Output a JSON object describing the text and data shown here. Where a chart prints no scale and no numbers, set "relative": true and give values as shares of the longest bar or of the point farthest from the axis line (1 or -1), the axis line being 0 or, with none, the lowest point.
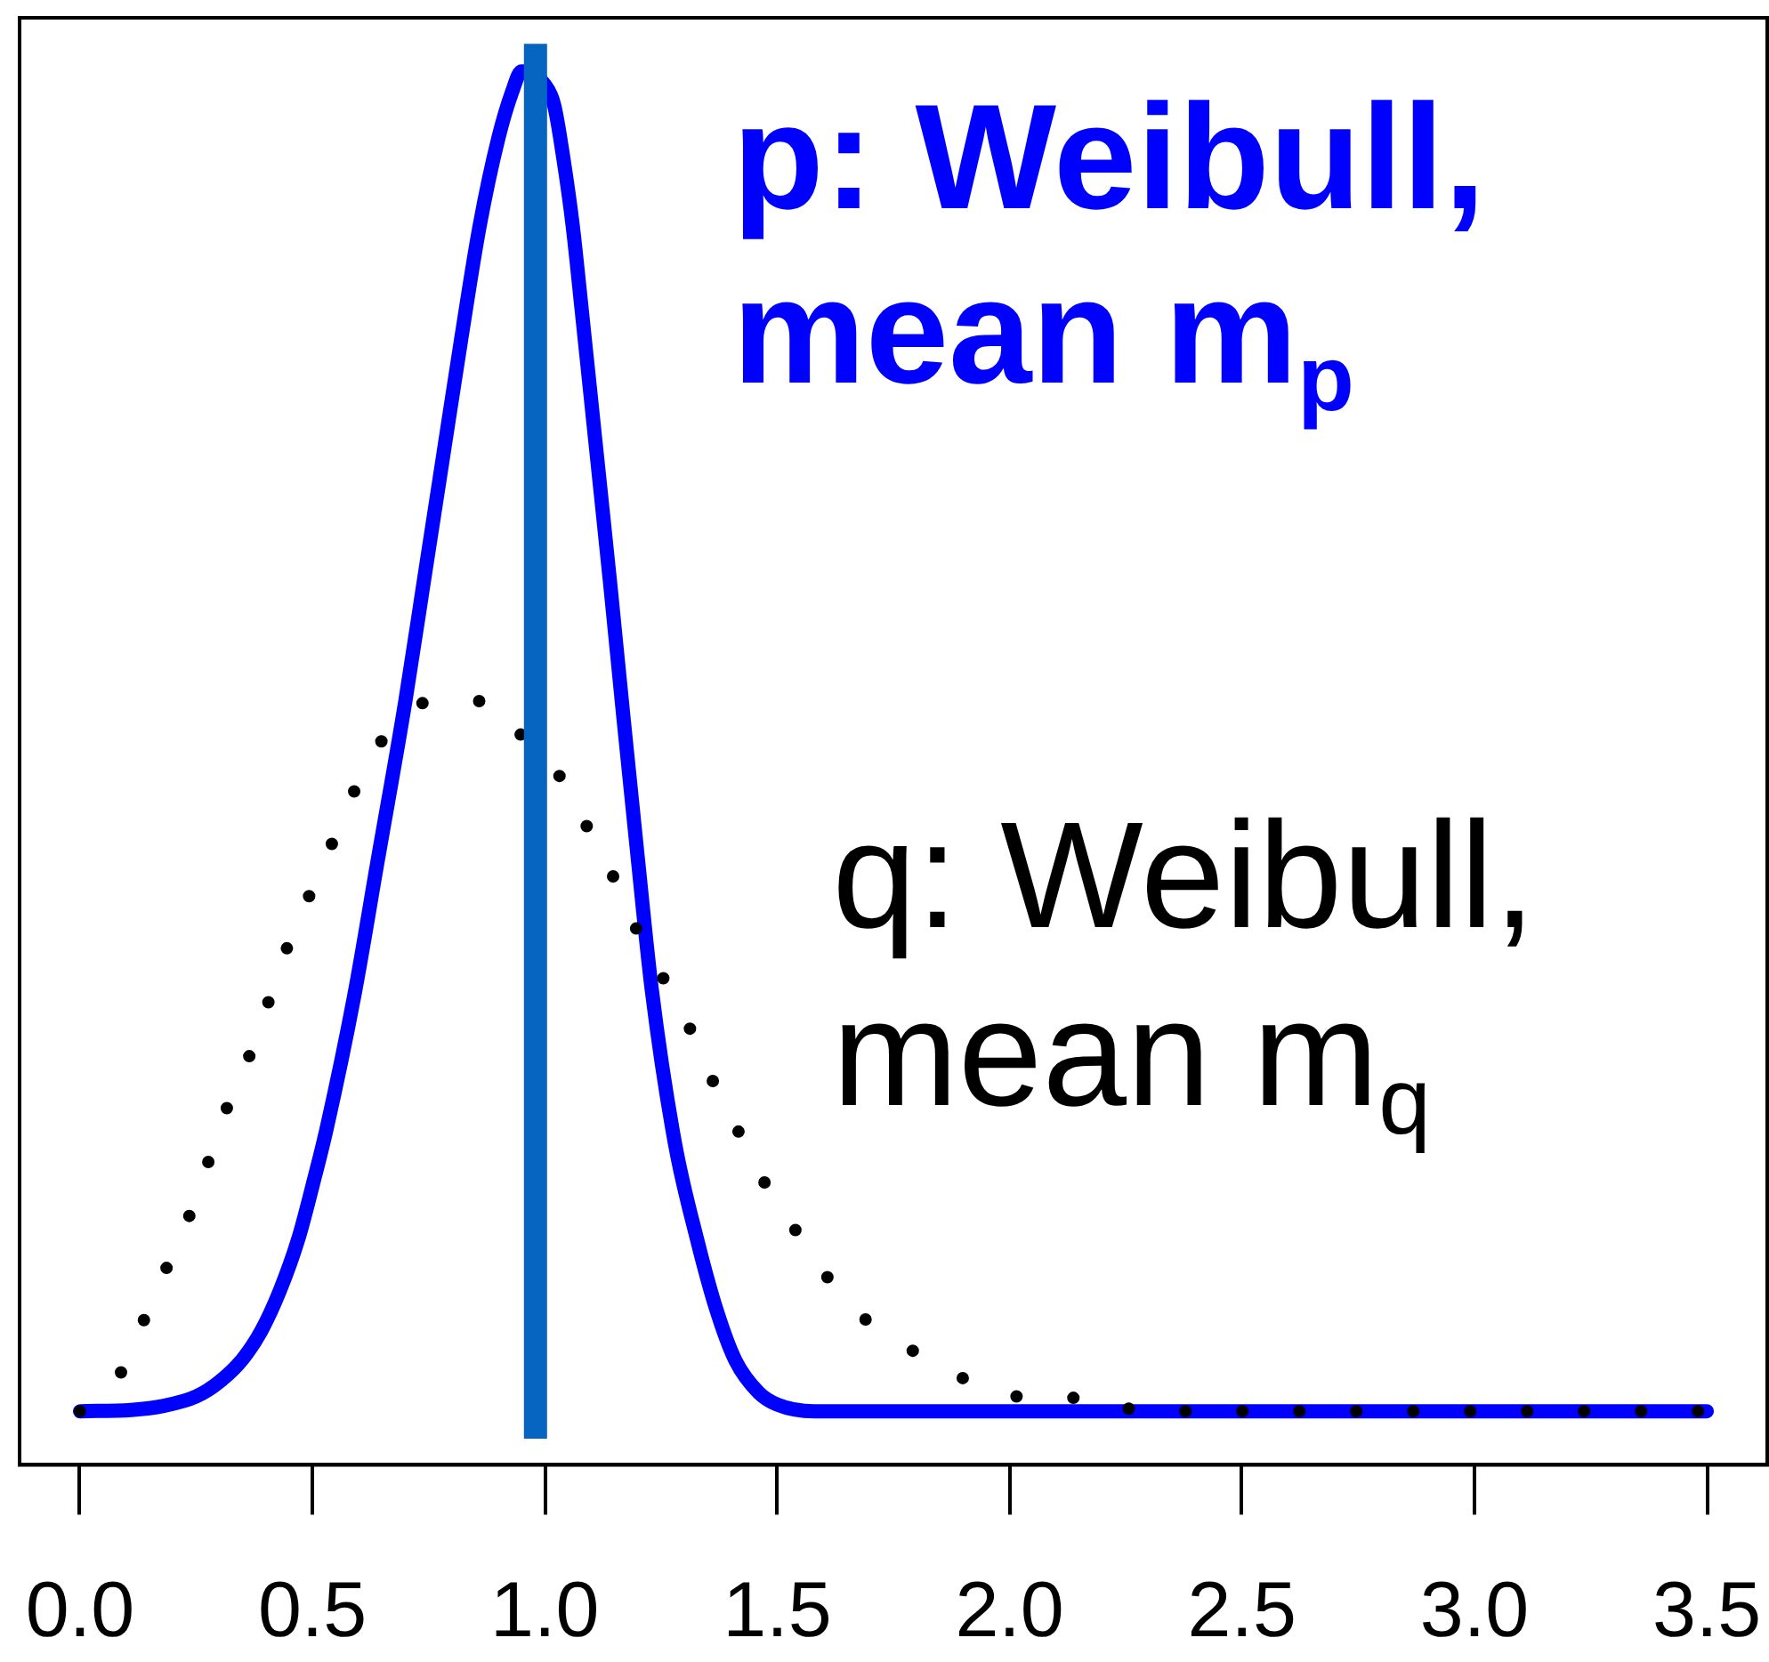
{
  "chart_data": {
    "type": "line",
    "relative": true,
    "xlim": [
      -0.13,
      3.63
    ],
    "xticks": [
      {
        "value": 0,
        "label": "0.0"
      },
      0.5,
      {
        "value": 1,
        "label": "1.0"
      },
      1.5,
      {
        "value": 2,
        "label": "2.0"
      },
      2.5,
      {
        "value": 3,
        "label": "3.0"
      },
      3.5
    ],
    "series": [
      {
        "name": "p: Weibull, mean m$_{p}$",
        "color": "#0000ff",
        "line_style": "solid",
        "x": [
          0,
          0.11,
          0.18,
          0.25,
          0.3,
          0.35,
          0.39,
          0.43,
          0.47,
          0.5,
          0.53,
          0.59,
          0.64,
          0.7,
          0.74,
          0.78,
          0.82,
          0.86,
          0.9,
          0.93,
          0.95,
          1,
          1.02,
          1.04,
          1.06,
          1.08,
          1.11,
          1.14,
          1.17,
          1.2,
          1.23,
          1.28,
          1.33,
          1.37,
          1.41,
          1.46,
          1.5,
          1.58,
          2,
          2.5,
          3,
          3.5
        ],
        "values": [
          0,
          0.001,
          0.004,
          0.011,
          0.022,
          0.039,
          0.06,
          0.09,
          0.129,
          0.168,
          0.21,
          0.31,
          0.41,
          0.53,
          0.62,
          0.71,
          0.8,
          0.885,
          0.95,
          0.985,
          1,
          0.99,
          0.975,
          0.935,
          0.885,
          0.82,
          0.72,
          0.62,
          0.515,
          0.413,
          0.315,
          0.2,
          0.125,
          0.075,
          0.038,
          0.014,
          0.005,
          0,
          0,
          0,
          0,
          0
        ]
      },
      {
        "name": "q: Weibull, mean m$_{q}$",
        "color": "#000000",
        "line_style": "dotted",
        "x": [
          0,
          0.09,
          0.14,
          0.19,
          0.24,
          0.28,
          0.32,
          0.37,
          0.41,
          0.45,
          0.5,
          0.55,
          0.6,
          0.67,
          0.76,
          0.88,
          0.96,
          1.04,
          1.1,
          1.16,
          1.21,
          1.26,
          1.32,
          1.37,
          1.43,
          1.49,
          1.55,
          1.63,
          1.72,
          1.82,
          1.93,
          2.05,
          2.17,
          2.29,
          2.6,
          3,
          3.5
        ],
        "values": [
          0,
          0.03,
          0.07,
          0.11,
          0.15,
          0.19,
          0.23,
          0.27,
          0.31,
          0.35,
          0.39,
          0.43,
          0.47,
          0.51,
          0.53,
          0.53,
          0.5,
          0.47,
          0.43,
          0.39,
          0.35,
          0.32,
          0.28,
          0.24,
          0.2,
          0.16,
          0.13,
          0.09,
          0.06,
          0.04,
          0.02,
          0.01,
          0.01,
          0,
          0,
          0,
          0
        ]
      }
    ],
    "ref_lines": [
      {
        "axis": "x",
        "value": 0.98,
        "color": "#0565c0"
      }
    ]
  }
}
